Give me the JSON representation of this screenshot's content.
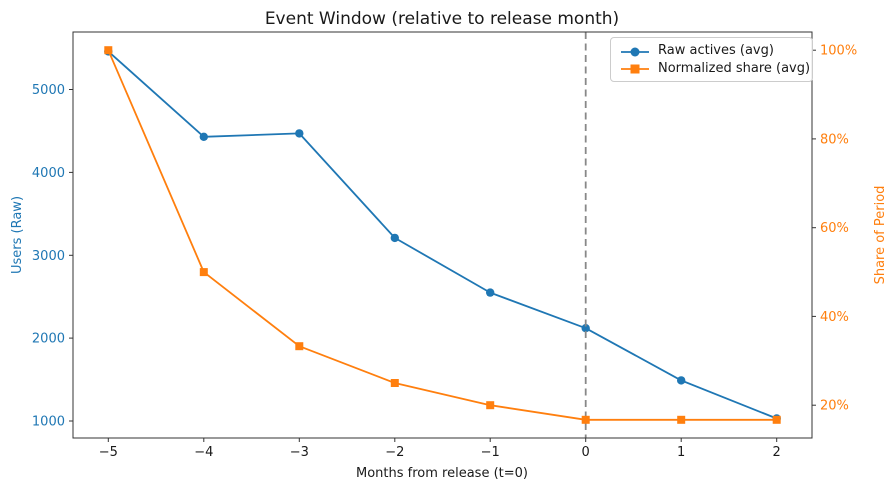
{
  "chart_data": {
    "type": "line",
    "title": "Event Window (relative to release month)",
    "xlabel": "Months from release (t=0)",
    "ylabel_left": "Users (Raw)",
    "ylabel_right": "Share of Period",
    "x": [
      -5,
      -4,
      -3,
      -2,
      -1,
      0,
      1,
      2
    ],
    "series": [
      {
        "name": "Raw actives (avg)",
        "axis": "left",
        "color": "#1f77b4",
        "marker": "circle",
        "values": [
          5460,
          4430,
          4470,
          3210,
          2550,
          2120,
          1490,
          1030
        ]
      },
      {
        "name": "Normalized share (avg)",
        "axis": "right",
        "color": "#ff7f0e",
        "marker": "square",
        "values": [
          100,
          50,
          33.3,
          25,
          20,
          16.7,
          16.7,
          16.7
        ]
      }
    ],
    "event_line": {
      "x": 0,
      "color": "#888888",
      "style": "dashed"
    },
    "axes": {
      "x": {
        "lim": [
          -5.37,
          2.37
        ],
        "ticks": [
          -5,
          -4,
          -3,
          -2,
          -1,
          0,
          1,
          2
        ],
        "tick_labels": [
          "−5",
          "−4",
          "−3",
          "−2",
          "−1",
          "0",
          "1",
          "2"
        ],
        "tick_color": "#1a1a1a"
      },
      "y_left": {
        "lim": [
          795,
          5694
        ],
        "ticks": [
          1000,
          2000,
          3000,
          4000,
          5000
        ],
        "tick_labels": [
          "1000",
          "2000",
          "3000",
          "4000",
          "5000"
        ],
        "tick_color": "#1f77b4"
      },
      "y_right": {
        "lim": [
          12.6,
          104.1
        ],
        "ticks": [
          20,
          40,
          60,
          80,
          100
        ],
        "tick_labels": [
          "20%",
          "40%",
          "60%",
          "80%",
          "100%"
        ],
        "tick_color": "#ff7f0e"
      }
    },
    "legend": {
      "position": "upper-right",
      "entries": [
        "Raw actives (avg)",
        "Normalized share (avg)"
      ]
    },
    "grid": false
  }
}
